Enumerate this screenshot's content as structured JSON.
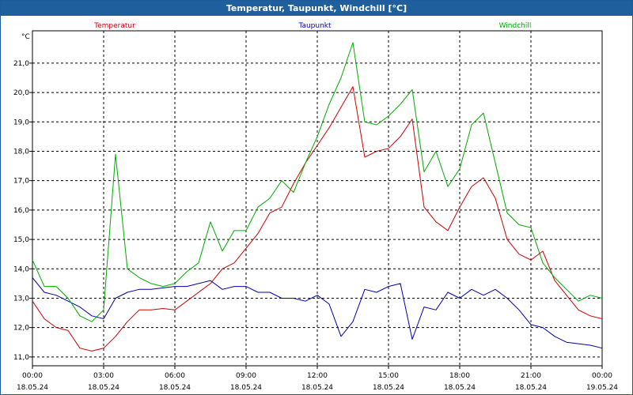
{
  "window": {
    "title": "Temperatur, Taupunkt, Windchill [°C]"
  },
  "colors": {
    "temperature": "#cc0000",
    "dewpoint": "#0000aa",
    "windchill": "#00aa00",
    "grid": "#000000",
    "titlebar": "#1f5f9e"
  },
  "chart_data": {
    "type": "line",
    "title": "Temperatur, Taupunkt, Windchill [°C]",
    "ylabel": "°C",
    "xlabel": "",
    "ylim": [
      10.7,
      22.1
    ],
    "xlim": [
      0,
      24
    ],
    "grid": true,
    "yticks": [
      "11,0",
      "12,0",
      "13,0",
      "14,0",
      "15,0",
      "16,0",
      "17,0",
      "18,0",
      "19,0",
      "20,0",
      "21,0"
    ],
    "xticks": [
      {
        "time": "00:00",
        "date": "18.05.24"
      },
      {
        "time": "03:00",
        "date": "18.05.24"
      },
      {
        "time": "06:00",
        "date": "18.05.24"
      },
      {
        "time": "09:00",
        "date": "18.05.24"
      },
      {
        "time": "12:00",
        "date": "18.05.24"
      },
      {
        "time": "15:00",
        "date": "18.05.24"
      },
      {
        "time": "18:00",
        "date": "18.05.24"
      },
      {
        "time": "21:00",
        "date": "18.05.24"
      },
      {
        "time": "00:00",
        "date": "19.05.24"
      }
    ],
    "legend": [
      "Temperatur",
      "Taupunkt",
      "Windchill"
    ],
    "x": [
      0,
      0.5,
      1,
      1.5,
      2,
      2.5,
      3,
      3.5,
      4,
      4.5,
      5,
      5.5,
      6,
      6.5,
      7,
      7.5,
      8,
      8.5,
      9,
      9.5,
      10,
      10.5,
      11,
      11.5,
      12,
      12.5,
      13,
      13.5,
      14,
      14.5,
      15,
      15.5,
      16,
      16.5,
      17,
      17.5,
      18,
      18.5,
      19,
      19.5,
      20,
      20.5,
      21,
      21.5,
      22,
      22.5,
      23,
      23.5,
      24
    ],
    "series": [
      {
        "name": "Temperatur",
        "values": [
          12.9,
          12.3,
          12.0,
          11.9,
          11.3,
          11.2,
          11.3,
          11.7,
          12.2,
          12.6,
          12.6,
          12.65,
          12.6,
          12.9,
          13.2,
          13.5,
          14.0,
          14.2,
          14.7,
          15.2,
          15.9,
          16.1,
          16.9,
          17.6,
          18.2,
          18.8,
          19.5,
          20.2,
          17.8,
          18.0,
          18.1,
          18.5,
          19.1,
          16.1,
          15.6,
          15.3,
          16.1,
          16.8,
          17.1,
          16.4,
          15.0,
          14.5,
          14.3,
          14.6,
          13.6,
          13.1,
          12.6,
          12.4,
          12.3
        ]
      },
      {
        "name": "Taupunkt",
        "values": [
          13.7,
          13.2,
          13.1,
          12.9,
          12.7,
          12.4,
          12.3,
          13.0,
          13.2,
          13.3,
          13.3,
          13.35,
          13.4,
          13.4,
          13.5,
          13.6,
          13.3,
          13.4,
          13.4,
          13.2,
          13.2,
          13.0,
          13.0,
          12.9,
          13.1,
          12.8,
          11.7,
          12.2,
          13.3,
          13.2,
          13.4,
          13.5,
          11.6,
          12.7,
          12.6,
          13.2,
          13.0,
          13.3,
          13.1,
          13.3,
          13.0,
          12.6,
          12.1,
          12.0,
          11.7,
          11.5,
          11.45,
          11.4,
          11.3
        ]
      },
      {
        "name": "Windchill",
        "values": [
          14.3,
          13.4,
          13.4,
          13.0,
          12.4,
          12.2,
          12.6,
          17.9,
          14.0,
          13.7,
          13.5,
          13.4,
          13.5,
          13.9,
          14.2,
          15.6,
          14.6,
          15.3,
          15.3,
          16.1,
          16.4,
          17.0,
          16.6,
          17.6,
          18.5,
          19.6,
          20.5,
          21.7,
          19.0,
          18.9,
          19.2,
          19.6,
          20.1,
          17.3,
          18.0,
          16.8,
          17.4,
          18.9,
          19.3,
          17.6,
          15.9,
          15.5,
          15.4,
          14.2,
          13.7,
          13.3,
          12.9,
          13.1,
          13.0
        ]
      }
    ]
  }
}
